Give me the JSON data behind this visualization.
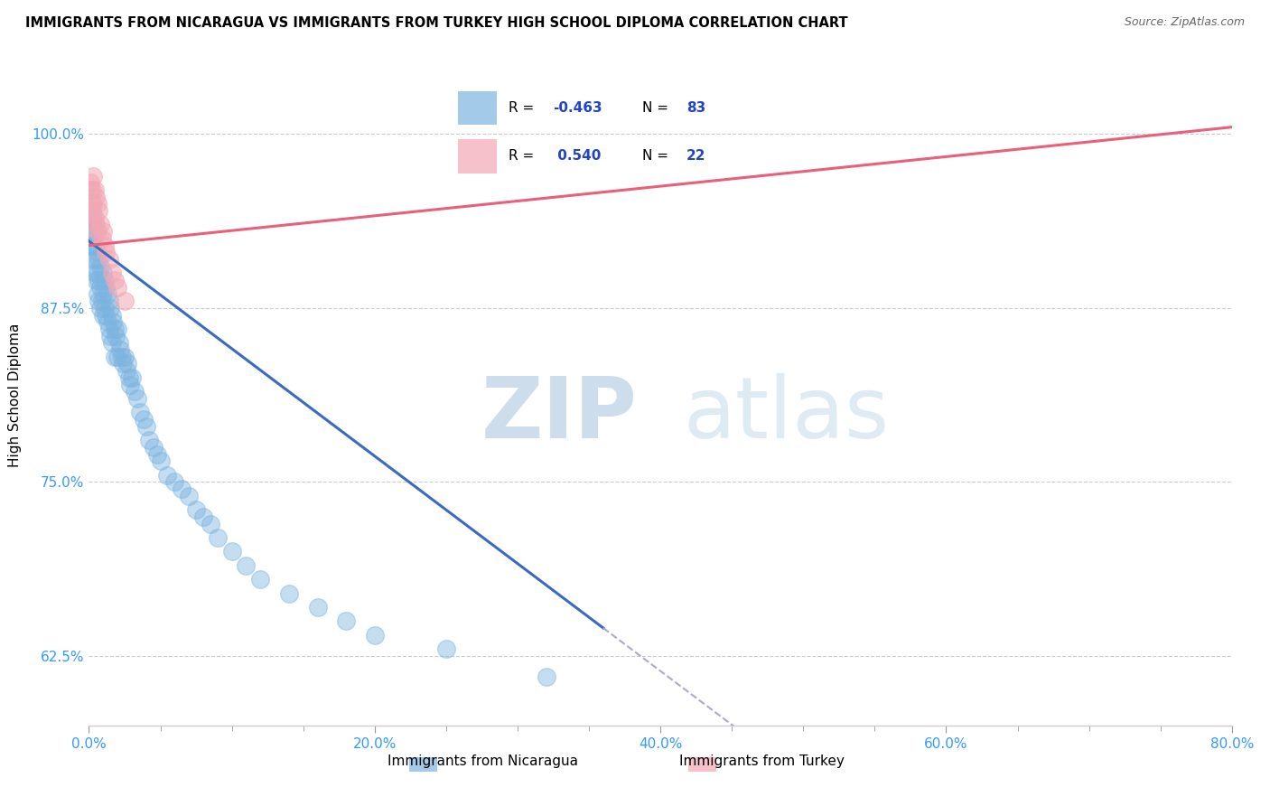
{
  "title": "IMMIGRANTS FROM NICARAGUA VS IMMIGRANTS FROM TURKEY HIGH SCHOOL DIPLOMA CORRELATION CHART",
  "source": "Source: ZipAtlas.com",
  "ylabel": "High School Diploma",
  "xlim": [
    0.0,
    0.8
  ],
  "ylim": [
    0.575,
    1.05
  ],
  "xtick_labels": [
    "0.0%",
    "",
    "",
    "",
    "",
    "",
    "",
    "",
    "20.0%",
    "",
    "",
    "",
    "",
    "",
    "",
    "",
    "40.0%",
    "",
    "",
    "",
    "",
    "",
    "",
    "",
    "60.0%",
    "",
    "",
    "",
    "",
    "",
    "",
    "",
    "80.0%"
  ],
  "xtick_values": [
    0.0,
    0.025,
    0.05,
    0.075,
    0.1,
    0.125,
    0.15,
    0.175,
    0.2,
    0.225,
    0.25,
    0.275,
    0.3,
    0.325,
    0.35,
    0.375,
    0.4,
    0.425,
    0.45,
    0.475,
    0.5,
    0.525,
    0.55,
    0.575,
    0.6,
    0.625,
    0.65,
    0.675,
    0.7,
    0.725,
    0.75,
    0.775,
    0.8
  ],
  "ytick_labels": [
    "62.5%",
    "75.0%",
    "87.5%",
    "100.0%"
  ],
  "ytick_values": [
    0.625,
    0.75,
    0.875,
    1.0
  ],
  "nicaragua_color": "#7cb4e0",
  "turkey_color": "#f4a7b5",
  "nicaragua_line_color": "#3a6bbf",
  "turkey_line_color": "#e8607a",
  "R_nicaragua": -0.463,
  "N_nicaragua": 83,
  "R_turkey": 0.54,
  "N_turkey": 22,
  "watermark_zip": "ZIP",
  "watermark_atlas": "atlas",
  "watermark_zip_color": "#c8d8e8",
  "watermark_atlas_color": "#d8e8f0",
  "legend_R_color": "#2244cc",
  "legend_label1": "Immigrants from Nicaragua",
  "legend_label2": "Immigrants from Turkey",
  "nicaragua_x": [
    0.001,
    0.001,
    0.002,
    0.002,
    0.002,
    0.003,
    0.003,
    0.003,
    0.003,
    0.004,
    0.004,
    0.004,
    0.005,
    0.005,
    0.005,
    0.006,
    0.006,
    0.006,
    0.007,
    0.007,
    0.007,
    0.008,
    0.008,
    0.008,
    0.009,
    0.009,
    0.01,
    0.01,
    0.01,
    0.011,
    0.011,
    0.012,
    0.012,
    0.013,
    0.013,
    0.014,
    0.014,
    0.015,
    0.015,
    0.016,
    0.016,
    0.017,
    0.018,
    0.018,
    0.019,
    0.02,
    0.02,
    0.021,
    0.022,
    0.023,
    0.024,
    0.025,
    0.026,
    0.027,
    0.028,
    0.029,
    0.03,
    0.032,
    0.034,
    0.036,
    0.038,
    0.04,
    0.042,
    0.045,
    0.048,
    0.05,
    0.055,
    0.06,
    0.065,
    0.07,
    0.075,
    0.08,
    0.085,
    0.09,
    0.1,
    0.11,
    0.12,
    0.14,
    0.16,
    0.18,
    0.2,
    0.25,
    0.32
  ],
  "nicaragua_y": [
    0.96,
    0.94,
    0.95,
    0.93,
    0.92,
    0.94,
    0.93,
    0.92,
    0.91,
    0.935,
    0.92,
    0.9,
    0.93,
    0.91,
    0.895,
    0.915,
    0.9,
    0.885,
    0.91,
    0.895,
    0.88,
    0.905,
    0.89,
    0.875,
    0.895,
    0.88,
    0.9,
    0.885,
    0.87,
    0.895,
    0.875,
    0.89,
    0.87,
    0.885,
    0.865,
    0.88,
    0.86,
    0.875,
    0.855,
    0.87,
    0.85,
    0.865,
    0.86,
    0.84,
    0.855,
    0.86,
    0.84,
    0.85,
    0.845,
    0.84,
    0.835,
    0.84,
    0.83,
    0.835,
    0.825,
    0.82,
    0.825,
    0.815,
    0.81,
    0.8,
    0.795,
    0.79,
    0.78,
    0.775,
    0.77,
    0.765,
    0.755,
    0.75,
    0.745,
    0.74,
    0.73,
    0.725,
    0.72,
    0.71,
    0.7,
    0.69,
    0.68,
    0.67,
    0.66,
    0.65,
    0.64,
    0.63,
    0.61
  ],
  "turkey_x": [
    0.001,
    0.002,
    0.002,
    0.003,
    0.003,
    0.004,
    0.004,
    0.005,
    0.005,
    0.006,
    0.006,
    0.007,
    0.008,
    0.009,
    0.01,
    0.011,
    0.012,
    0.014,
    0.016,
    0.018,
    0.02,
    0.025
  ],
  "turkey_y": [
    0.965,
    0.96,
    0.945,
    0.97,
    0.95,
    0.96,
    0.94,
    0.955,
    0.935,
    0.95,
    0.93,
    0.945,
    0.935,
    0.925,
    0.93,
    0.92,
    0.915,
    0.91,
    0.9,
    0.895,
    0.89,
    0.88
  ],
  "nic_line_x0": 0.0,
  "nic_line_y0": 0.923,
  "nic_line_x1": 0.36,
  "nic_line_y1": 0.645,
  "nic_line_solid_end": 0.36,
  "tur_line_x0": 0.0,
  "tur_line_y0": 0.92,
  "tur_line_x1": 0.8,
  "tur_line_y1": 1.005
}
